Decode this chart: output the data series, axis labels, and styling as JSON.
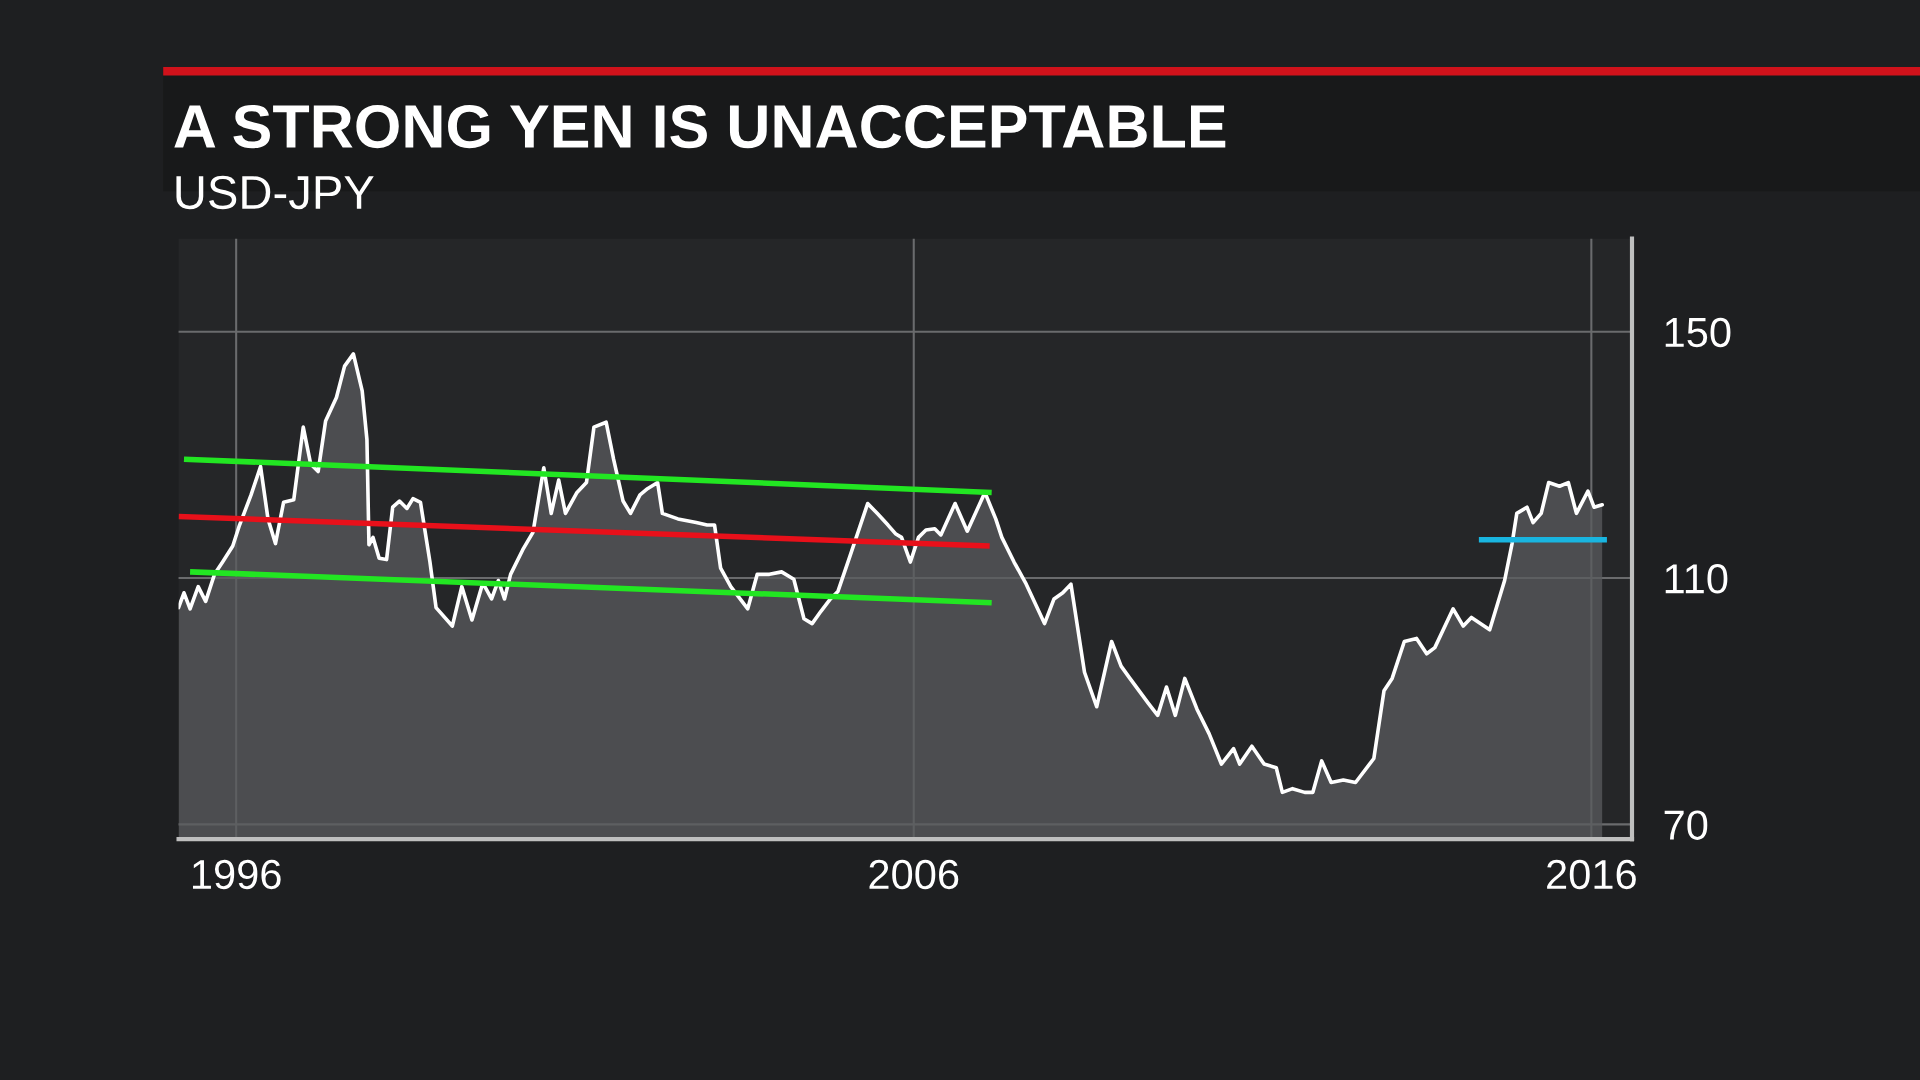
{
  "chart_data": {
    "type": "area",
    "title": "A STRONG YEN IS UNACCEPTABLE",
    "subtitle": "USD-JPY",
    "xlim": [
      1995.15,
      2016.6
    ],
    "ylim": [
      67.6,
      165.1
    ],
    "xticks": [
      1996,
      2006,
      2016
    ],
    "yticks": [
      70,
      110,
      150
    ],
    "grid": true,
    "series": [
      {
        "color": "#ffffff",
        "x": [
          1995.15,
          1995.23,
          1995.32,
          1995.44,
          1995.55,
          1995.68,
          1995.8,
          1995.95,
          1996.05,
          1996.22,
          1996.36,
          1996.47,
          1996.58,
          1996.7,
          1996.85,
          1996.99,
          1997.1,
          1997.21,
          1997.32,
          1997.48,
          1997.6,
          1997.73,
          1997.86,
          1997.93,
          1997.96,
          1998.02,
          1998.11,
          1998.22,
          1998.31,
          1998.41,
          1998.52,
          1998.61,
          1998.72,
          1998.86,
          1998.95,
          1999.19,
          1999.33,
          1999.48,
          1999.64,
          1999.77,
          1999.87,
          1999.96,
          2000.05,
          2000.23,
          2000.38,
          2000.54,
          2000.65,
          2000.76,
          2000.86,
          2001.03,
          2001.17,
          2001.28,
          2001.46,
          2001.57,
          2001.71,
          2001.82,
          2001.96,
          2002.07,
          2002.22,
          2002.29,
          2002.52,
          2002.79,
          2002.95,
          2003.06,
          2003.15,
          2003.3,
          2003.55,
          2003.69,
          2003.87,
          2004.05,
          2004.23,
          2004.38,
          2004.5,
          2004.63,
          2004.77,
          2004.88,
          2005.06,
          2005.32,
          2005.46,
          2005.62,
          2005.73,
          2005.82,
          2005.95,
          2006.07,
          2006.18,
          2006.31,
          2006.4,
          2006.61,
          2006.79,
          2007.05,
          2007.21,
          2007.3,
          2007.48,
          2007.66,
          2007.93,
          2008.07,
          2008.2,
          2008.32,
          2008.52,
          2008.7,
          2008.92,
          2009.06,
          2009.19,
          2009.46,
          2009.6,
          2009.73,
          2009.86,
          2010.0,
          2010.18,
          2010.36,
          2010.54,
          2010.72,
          2010.81,
          2010.99,
          2011.17,
          2011.35,
          2011.44,
          2011.59,
          2011.77,
          2011.89,
          2012.02,
          2012.16,
          2012.34,
          2012.52,
          2012.79,
          2012.94,
          2013.06,
          2013.24,
          2013.42,
          2013.57,
          2013.69,
          2013.96,
          2014.11,
          2014.23,
          2014.5,
          2014.72,
          2014.83,
          2014.9,
          2015.05,
          2015.14,
          2015.26,
          2015.37,
          2015.53,
          2015.66,
          2015.78,
          2015.95,
          2016.04,
          2016.16
        ],
        "values": [
          105.2,
          107.6,
          105.0,
          108.6,
          106.2,
          110.6,
          112.6,
          115.2,
          118.6,
          123.5,
          128.1,
          119.6,
          115.6,
          122.3,
          122.7,
          134.5,
          128.5,
          127.3,
          135.5,
          139.3,
          144.4,
          146.4,
          140.4,
          132.5,
          115.4,
          116.6,
          113.2,
          113.0,
          121.5,
          122.5,
          121.3,
          122.9,
          122.3,
          112.6,
          105.2,
          102.2,
          108.6,
          103.2,
          109.2,
          106.6,
          109.6,
          106.6,
          110.6,
          114.6,
          117.4,
          127.9,
          120.5,
          125.9,
          120.5,
          123.9,
          125.5,
          134.5,
          135.3,
          129.3,
          122.5,
          120.5,
          123.5,
          124.5,
          125.5,
          120.5,
          119.6,
          119.0,
          118.6,
          118.6,
          111.6,
          108.6,
          105.0,
          110.6,
          110.6,
          111.0,
          109.8,
          103.4,
          102.6,
          104.6,
          106.6,
          107.8,
          113.6,
          122.1,
          120.5,
          118.6,
          117.2,
          116.6,
          112.6,
          116.6,
          117.8,
          118.0,
          117.0,
          122.1,
          117.6,
          123.9,
          119.6,
          116.6,
          112.6,
          109.0,
          102.6,
          106.6,
          107.6,
          109.0,
          94.7,
          89.1,
          99.7,
          95.7,
          93.7,
          89.7,
          87.7,
          92.3,
          87.7,
          93.7,
          88.7,
          84.7,
          79.8,
          82.3,
          79.8,
          82.7,
          79.8,
          79.2,
          75.2,
          75.8,
          75.2,
          75.2,
          80.3,
          76.8,
          77.2,
          76.8,
          80.7,
          91.7,
          93.7,
          99.7,
          100.2,
          97.7,
          98.7,
          105.0,
          102.2,
          103.6,
          101.6,
          109.6,
          115.6,
          120.5,
          121.5,
          119.0,
          120.5,
          125.5,
          124.9,
          125.5,
          120.5,
          124.1,
          121.5,
          121.9
        ]
      },
      {
        "type": "line",
        "color": "#22e622",
        "x": [
          1995.23,
          2007.15
        ],
        "values": [
          129.3,
          123.9
        ]
      },
      {
        "type": "line",
        "color": "#e8101a",
        "x": [
          1995.15,
          2007.12
        ],
        "values": [
          120.0,
          115.2
        ]
      },
      {
        "type": "line",
        "color": "#22e622",
        "x": [
          1995.32,
          2007.15
        ],
        "values": [
          111.0,
          106.0
        ]
      },
      {
        "type": "line",
        "color": "#19b5e0",
        "x": [
          2014.34,
          2016.23
        ],
        "values": [
          116.2,
          116.2
        ]
      }
    ]
  }
}
